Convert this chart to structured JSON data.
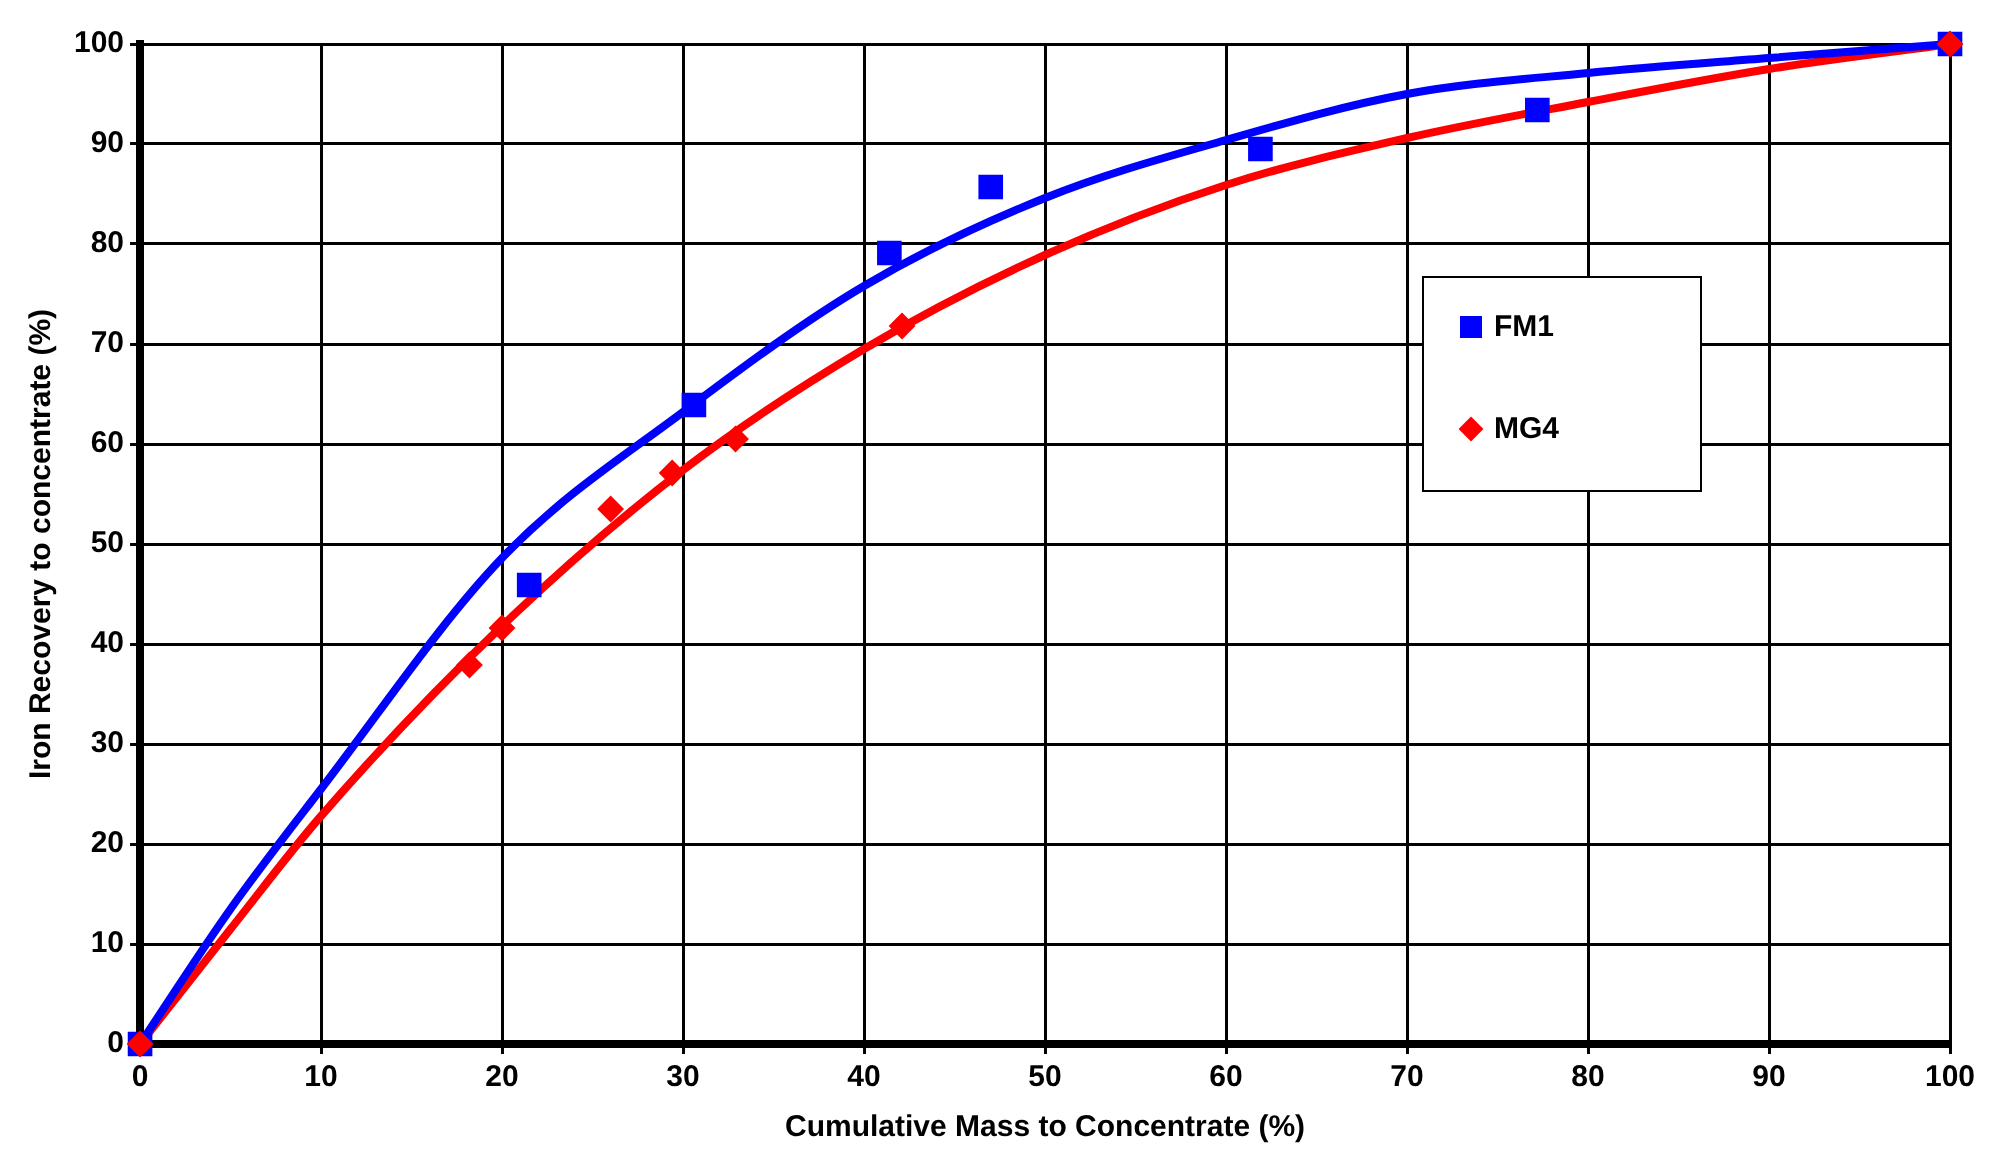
{
  "chart_data": {
    "type": "scatter",
    "xlabel": "Cumulative Mass to Concentrate (%)",
    "ylabel": "Iron Recovery to concentrate (%)",
    "xlim": [
      0,
      100
    ],
    "ylim": [
      0,
      100
    ],
    "xticks": [
      0,
      10,
      20,
      30,
      40,
      50,
      60,
      70,
      80,
      90,
      100
    ],
    "yticks": [
      0,
      10,
      20,
      30,
      40,
      50,
      60,
      70,
      80,
      90,
      100
    ],
    "grid": true,
    "legend": "right",
    "series": [
      {
        "type": "line",
        "color": "#0000ff",
        "marker": "none",
        "x": [
          0,
          5,
          10,
          20,
          30,
          40,
          50,
          60,
          70,
          80,
          90,
          100
        ],
        "values": [
          0,
          13.5,
          25.5,
          48.6,
          63.2,
          75.8,
          84.6,
          90.4,
          95,
          97.1,
          98.6,
          100
        ]
      },
      {
        "type": "line",
        "color": "#ff0000",
        "marker": "none",
        "x": [
          0,
          5,
          10,
          20,
          30,
          40,
          50,
          60,
          70,
          80,
          90,
          100
        ],
        "values": [
          0,
          11.5,
          22.8,
          41.8,
          57.4,
          69.5,
          78.9,
          85.9,
          90.6,
          94.2,
          97.5,
          100
        ]
      },
      {
        "name": "FM1",
        "type": "scatter",
        "color": "#0000ff",
        "marker": "square",
        "x": [
          0,
          21.5,
          30.6,
          41.4,
          47,
          61.9,
          77.2,
          100
        ],
        "values": [
          0,
          45.9,
          63.9,
          79.1,
          85.7,
          89.5,
          93.4,
          100
        ]
      },
      {
        "name": "MG4",
        "type": "scatter",
        "color": "#ff0000",
        "marker": "diamond",
        "x": [
          0,
          18.2,
          20,
          26,
          29.4,
          32.9,
          42.1,
          100
        ],
        "values": [
          0,
          37.9,
          41.6,
          53.5,
          57.1,
          60.5,
          71.8,
          100
        ]
      }
    ]
  }
}
